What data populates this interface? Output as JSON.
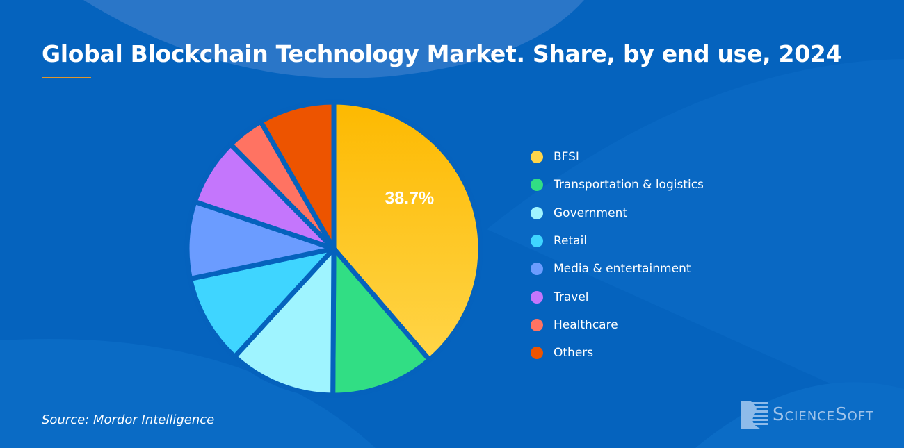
{
  "title": "Global Blockchain Technology Market. Share, by end use, 2024",
  "source": "Source: Mordor Intelligence",
  "logo_text": "ScienceSoft",
  "chart_data": {
    "type": "pie",
    "title": "Global Blockchain Technology Market. Share, by end use, 2024",
    "unit": "%",
    "legend_position": "right",
    "slices": [
      {
        "label": "BFSI",
        "value": 38.7,
        "color": "#fdc31e",
        "data_label": "38.7%"
      },
      {
        "label": "Transportation & logistics",
        "value": 11.4,
        "color": "#31de84"
      },
      {
        "label": "Government",
        "value": 11.7,
        "color": "#9ff4ff"
      },
      {
        "label": "Retail",
        "value": 9.9,
        "color": "#3fd5ff"
      },
      {
        "label": "Media & entertainment",
        "value": 8.5,
        "color": "#6b9cff"
      },
      {
        "label": "Travel",
        "value": 7.4,
        "color": "#c476fc"
      },
      {
        "label": "Healthcare",
        "value": 4.1,
        "color": "#ff7362"
      },
      {
        "label": "Others",
        "value": 8.3,
        "color": "#ed5400"
      }
    ]
  }
}
